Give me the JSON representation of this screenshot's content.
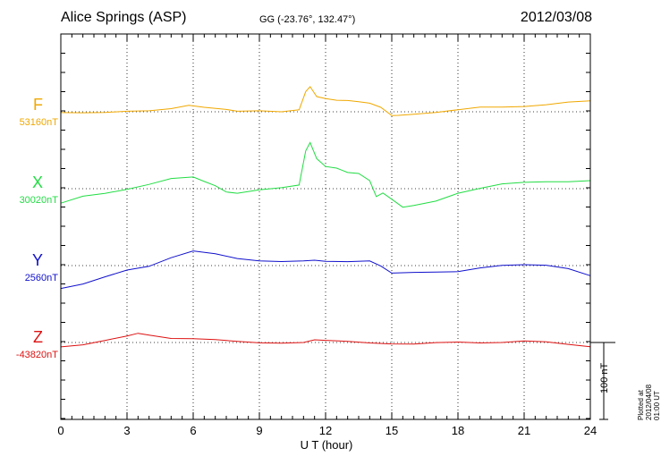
{
  "header": {
    "title": "Alice Springs (ASP)",
    "coords": "GG (-23.76°, 132.47°)",
    "date": "2012/03/08"
  },
  "scale_label": "100 nT",
  "plotted_note": "Plotted at 2012/04/08 01:00 UT",
  "chart_data": {
    "type": "line",
    "xlabel": "U T (hour)",
    "xlim": [
      0,
      24
    ],
    "xticks": [
      0,
      3,
      6,
      9,
      12,
      15,
      18,
      21,
      24
    ],
    "scale_bar_nT": 100,
    "grid": true,
    "series": [
      {
        "name": "F",
        "baseline_label": "53160nT",
        "baseline_nT": 53160,
        "color": "#f0a800",
        "x": [
          0,
          1,
          2,
          3,
          4,
          5,
          5.8,
          6.5,
          7.5,
          8,
          9,
          10,
          10.8,
          11.1,
          11.3,
          11.6,
          12,
          12.5,
          13,
          13.5,
          14,
          14.5,
          15,
          15.3,
          16,
          17,
          18,
          19,
          20,
          21,
          22,
          23,
          24
        ],
        "y": [
          -1,
          0,
          0,
          0,
          0,
          4,
          8,
          7,
          3,
          0,
          0,
          0,
          2,
          26,
          32,
          20,
          18,
          15,
          14,
          12,
          10,
          5,
          -5,
          -5,
          -2,
          0,
          2,
          5,
          6,
          8,
          10,
          12,
          13
        ]
      },
      {
        "name": "X",
        "baseline_label": "30020nT",
        "baseline_nT": 30020,
        "color": "#22dd44",
        "x": [
          0,
          1,
          2,
          3,
          4,
          5,
          6,
          6.5,
          7,
          7.5,
          8,
          9,
          10,
          10.8,
          11.1,
          11.3,
          11.6,
          12,
          12.5,
          13,
          13.5,
          14,
          14.3,
          14.6,
          15,
          15.5,
          16,
          17,
          18,
          19,
          20,
          21,
          22,
          23,
          24
        ],
        "y": [
          -20,
          -10,
          -5,
          0,
          5,
          12,
          15,
          10,
          5,
          -3,
          -5,
          -2,
          0,
          5,
          48,
          60,
          38,
          30,
          28,
          22,
          20,
          10,
          -10,
          -5,
          -15,
          -25,
          -22,
          -15,
          -5,
          0,
          5,
          8,
          10,
          10,
          10
        ]
      },
      {
        "name": "Y",
        "baseline_label": "2560nT",
        "baseline_nT": 2560,
        "color": "#1010cc",
        "x": [
          0,
          1,
          2,
          3,
          4,
          5,
          6,
          7,
          8,
          9,
          10,
          11,
          11.5,
          12,
          13,
          14,
          14.5,
          15,
          16,
          17,
          18,
          19,
          20,
          21,
          22,
          23,
          24
        ],
        "y": [
          -30,
          -25,
          -15,
          -5,
          0,
          10,
          18,
          15,
          10,
          7,
          5,
          5,
          6,
          5,
          6,
          7,
          0,
          -10,
          -10,
          -9,
          -7,
          -2,
          0,
          0,
          0,
          -3,
          -12
        ]
      },
      {
        "name": "Z",
        "baseline_label": "-43820nT",
        "baseline_nT": -43820,
        "color": "#dd1111",
        "x": [
          0,
          1,
          2,
          3,
          3.5,
          4,
          5,
          6,
          7,
          8,
          9,
          10,
          11,
          11.5,
          12,
          13,
          14,
          15,
          16,
          17,
          18,
          19,
          20,
          21,
          22,
          23,
          24
        ],
        "y": [
          -5,
          -3,
          2,
          8,
          12,
          10,
          6,
          5,
          3,
          1,
          0,
          0,
          0,
          3,
          2,
          1,
          0,
          -1,
          -2,
          -1,
          0,
          0,
          1,
          2,
          0,
          -3,
          -5
        ]
      }
    ]
  }
}
